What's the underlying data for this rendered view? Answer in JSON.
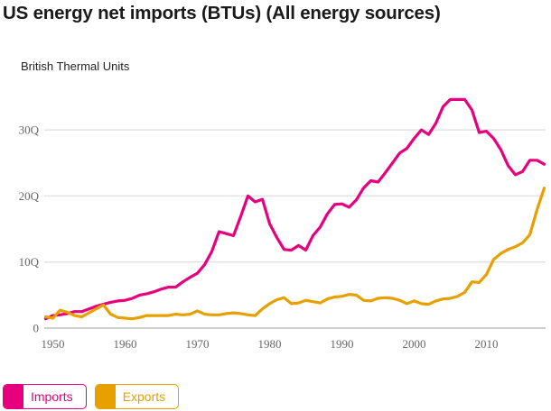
{
  "header": {
    "title": "US energy net imports (BTUs) (All energy sources)",
    "unit_label": "British Thermal Units"
  },
  "legend": [
    {
      "label": "Imports",
      "color": "#E6007E"
    },
    {
      "label": "Exports",
      "color": "#E8A000"
    }
  ],
  "chart_data": {
    "type": "line",
    "title": "US energy net imports (BTUs) (All energy sources)",
    "ylabel": "British Thermal Units",
    "xlabel": "",
    "xlim": [
      1949,
      2018
    ],
    "ylim": [
      0,
      36
    ],
    "y_ticks": [
      0,
      10,
      20,
      30
    ],
    "y_tick_labels": [
      "0",
      "10Q",
      "20Q",
      "30Q"
    ],
    "x_ticks": [
      1950,
      1960,
      1970,
      1980,
      1990,
      2000,
      2010
    ],
    "x_tick_labels": [
      "1950",
      "1960",
      "1970",
      "1980",
      "1990",
      "2000",
      "2010"
    ],
    "grid": "horizontal",
    "legend_position": "bottom-left",
    "x": [
      1949,
      1950,
      1951,
      1952,
      1953,
      1954,
      1955,
      1956,
      1957,
      1958,
      1959,
      1960,
      1961,
      1962,
      1963,
      1964,
      1965,
      1966,
      1967,
      1968,
      1969,
      1970,
      1971,
      1972,
      1973,
      1974,
      1975,
      1976,
      1977,
      1978,
      1979,
      1980,
      1981,
      1982,
      1983,
      1984,
      1985,
      1986,
      1987,
      1988,
      1989,
      1990,
      1991,
      1992,
      1993,
      1994,
      1995,
      1996,
      1997,
      1998,
      1999,
      2000,
      2001,
      2002,
      2003,
      2004,
      2005,
      2006,
      2007,
      2008,
      2009,
      2010,
      2011,
      2012,
      2013,
      2014,
      2015,
      2016,
      2017,
      2018
    ],
    "series": [
      {
        "name": "Imports",
        "color": "#E6007E",
        "values": [
          1.4,
          1.9,
          2.0,
          2.2,
          2.5,
          2.5,
          2.9,
          3.3,
          3.6,
          3.9,
          4.1,
          4.2,
          4.5,
          5.0,
          5.2,
          5.5,
          5.9,
          6.2,
          6.2,
          7.0,
          7.7,
          8.3,
          9.6,
          11.6,
          14.6,
          14.3,
          14.0,
          16.9,
          20.0,
          19.1,
          19.5,
          15.8,
          13.7,
          11.9,
          11.8,
          12.5,
          11.8,
          14.0,
          15.3,
          17.3,
          18.7,
          18.8,
          18.3,
          19.4,
          21.2,
          22.3,
          22.1,
          23.5,
          25.0,
          26.5,
          27.2,
          28.7,
          30.0,
          29.3,
          31.0,
          33.5,
          34.6,
          34.6,
          34.6,
          33.0,
          29.6,
          29.8,
          28.7,
          27.0,
          24.6,
          23.2,
          23.7,
          25.4,
          25.4,
          24.8
        ]
      },
      {
        "name": "Exports",
        "color": "#E8A000",
        "values": [
          1.7,
          1.5,
          2.7,
          2.4,
          1.9,
          1.7,
          2.3,
          2.9,
          3.5,
          2.1,
          1.6,
          1.5,
          1.4,
          1.6,
          1.9,
          1.9,
          1.9,
          1.9,
          2.1,
          2.0,
          2.1,
          2.6,
          2.1,
          2.0,
          2.0,
          2.2,
          2.3,
          2.2,
          2.0,
          1.9,
          2.9,
          3.7,
          4.3,
          4.6,
          3.7,
          3.8,
          4.2,
          4.0,
          3.8,
          4.4,
          4.7,
          4.8,
          5.1,
          5.0,
          4.2,
          4.1,
          4.5,
          4.6,
          4.5,
          4.2,
          3.7,
          4.1,
          3.7,
          3.6,
          4.1,
          4.4,
          4.5,
          4.8,
          5.4,
          7.0,
          6.9,
          8.1,
          10.4,
          11.3,
          11.9,
          12.3,
          12.9,
          14.1,
          17.9,
          21.2
        ]
      }
    ]
  }
}
